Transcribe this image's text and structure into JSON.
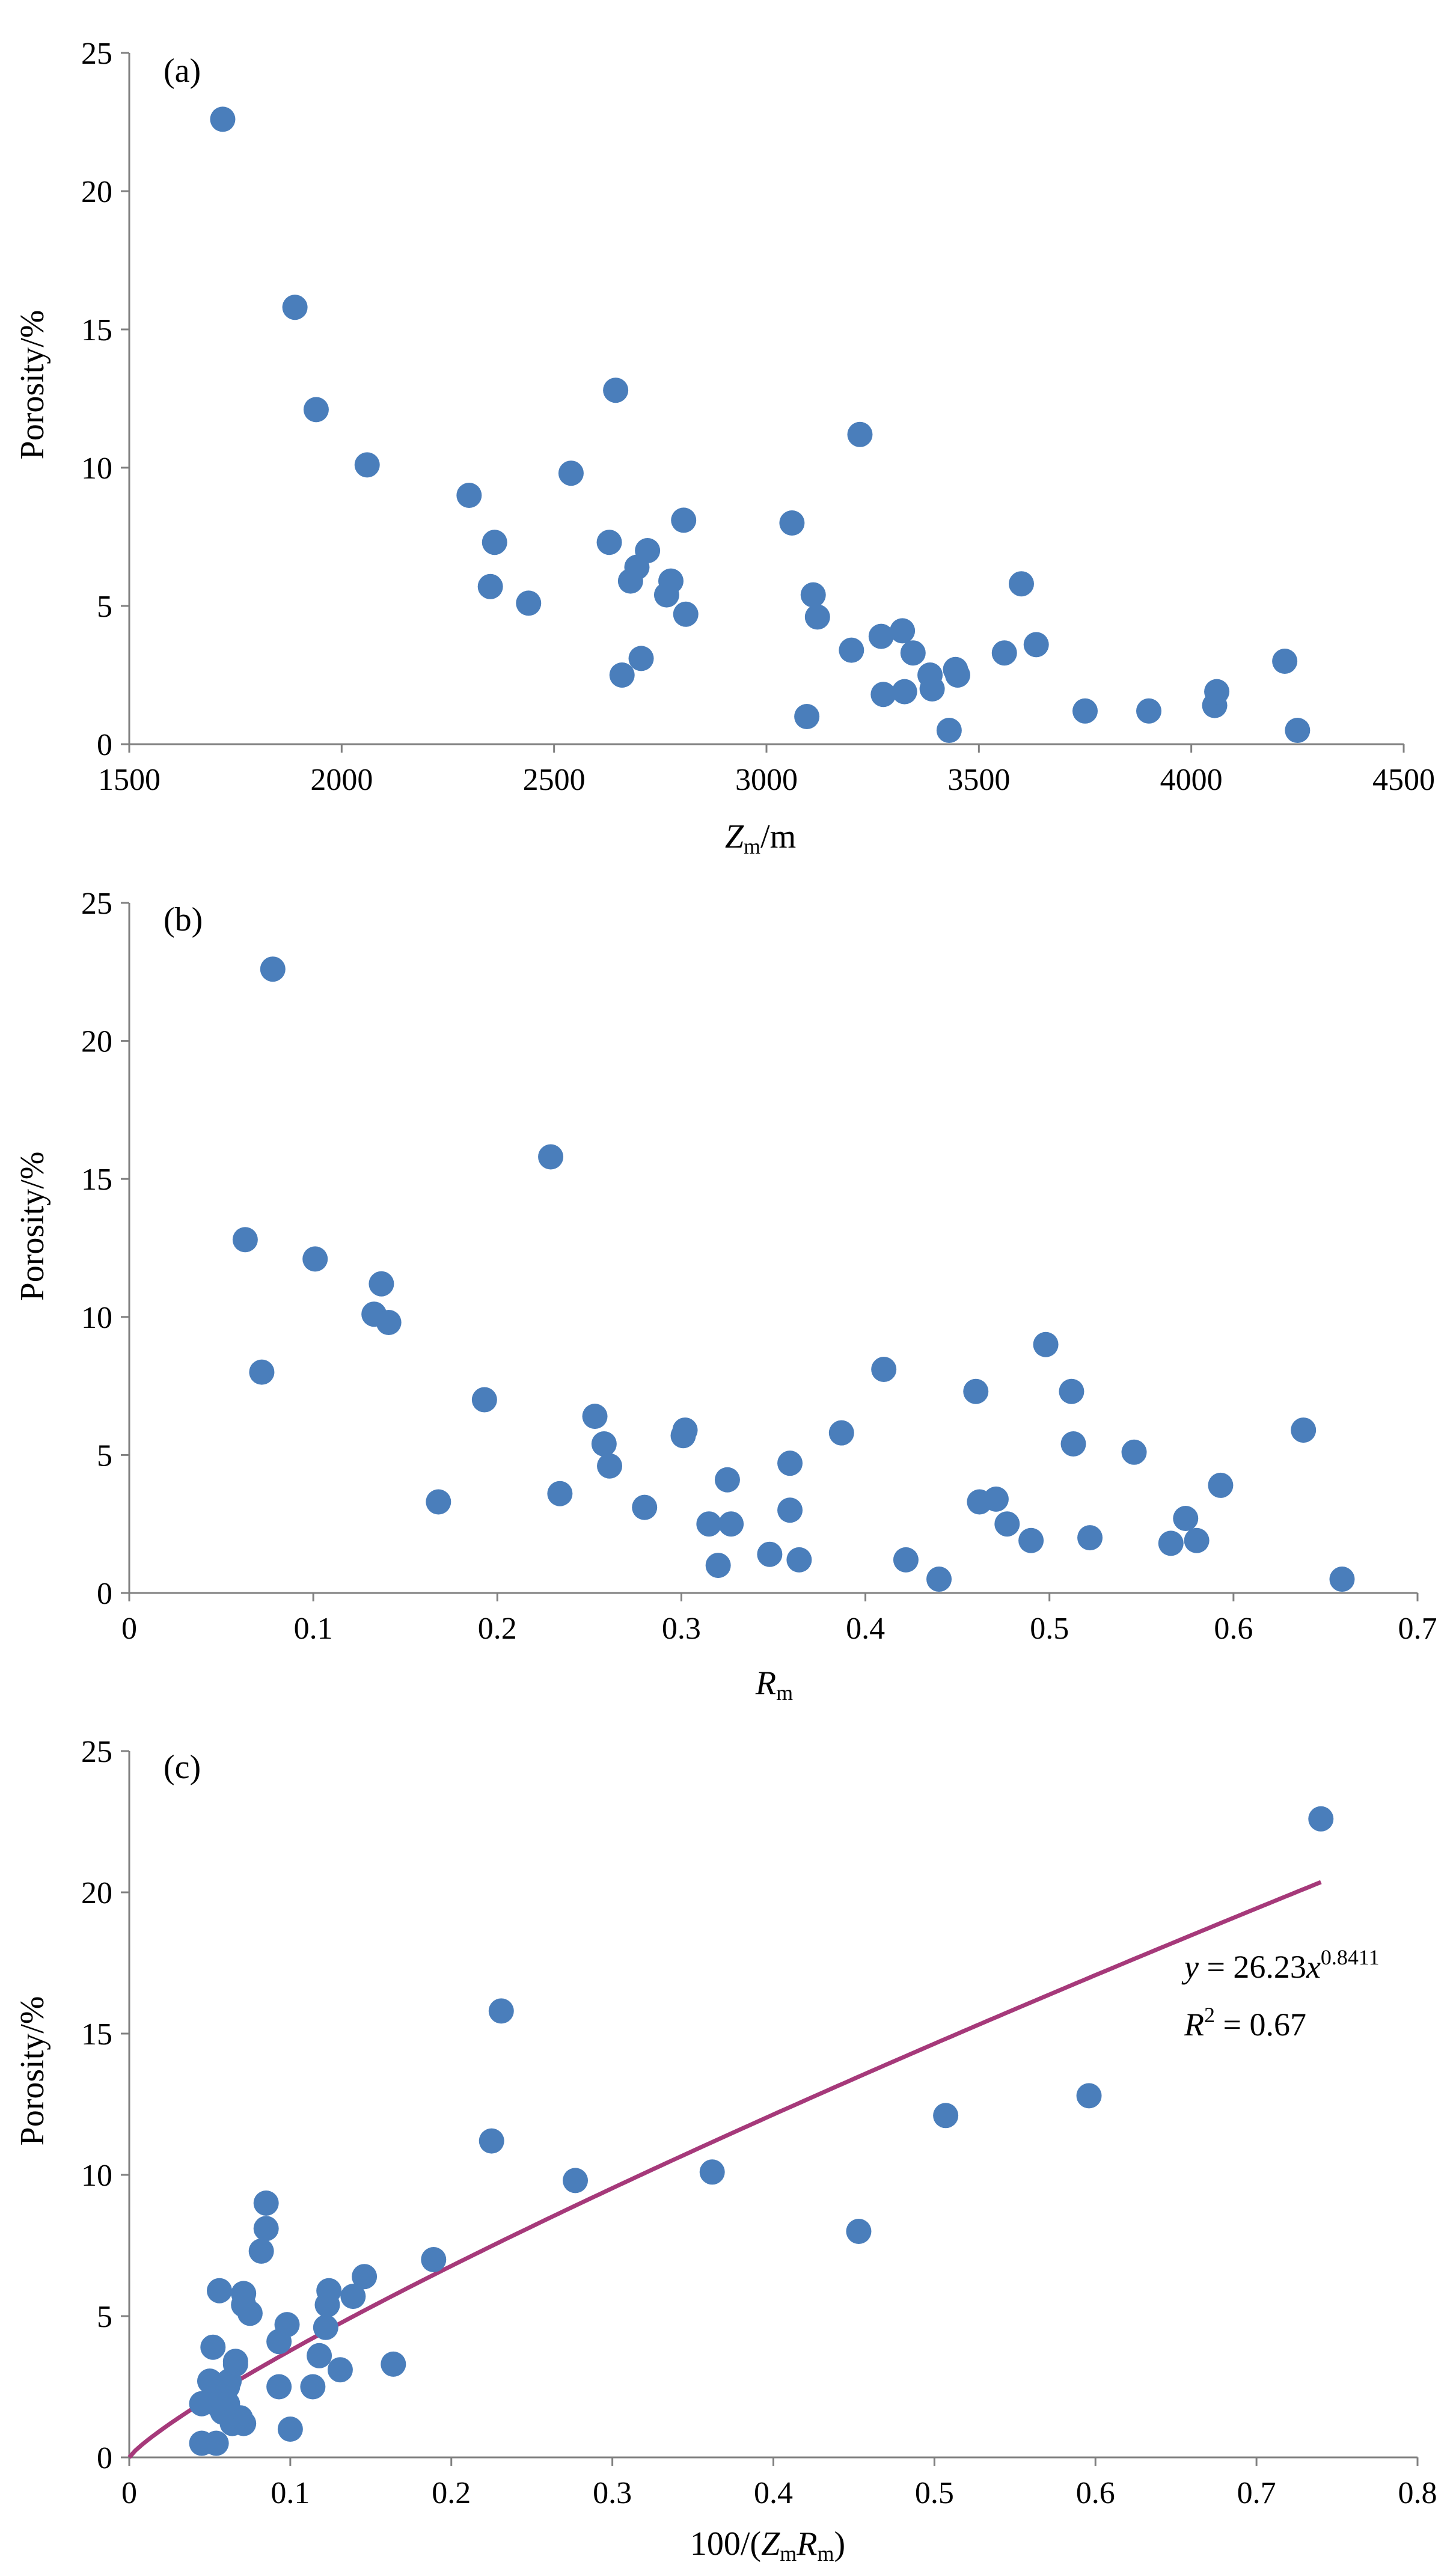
{
  "colors": {
    "marker": "#4a7ebb",
    "fit": "#a6397a",
    "axis": "#808080"
  },
  "chart_data": [
    {
      "type": "scatter",
      "panel_label": "(a)",
      "xlabel": {
        "main": "Z",
        "sub": "m",
        "suffix": "/m"
      },
      "ylabel": "Porosity/%",
      "xlim": [
        1500,
        4500
      ],
      "ylim": [
        0,
        25
      ],
      "xticks": [
        "1500",
        "2000",
        "2500",
        "3000",
        "3500",
        "4000",
        "4500"
      ],
      "yticks": [
        "0",
        "5",
        "10",
        "15",
        "20",
        "25"
      ],
      "points": [
        [
          1720,
          22.6
        ],
        [
          1890,
          15.8
        ],
        [
          1940,
          12.1
        ],
        [
          2060,
          10.1
        ],
        [
          2300,
          9.0
        ],
        [
          2350,
          5.7
        ],
        [
          2360,
          7.3
        ],
        [
          2440,
          5.1
        ],
        [
          2540,
          9.8
        ],
        [
          2630,
          7.3
        ],
        [
          2645,
          12.8
        ],
        [
          2660,
          2.5
        ],
        [
          2680,
          5.9
        ],
        [
          2695,
          6.4
        ],
        [
          2705,
          3.1
        ],
        [
          2720,
          7.0
        ],
        [
          2765,
          5.4
        ],
        [
          2775,
          5.9
        ],
        [
          2805,
          8.1
        ],
        [
          2810,
          4.7
        ],
        [
          3060,
          8.0
        ],
        [
          3095,
          1.0
        ],
        [
          3110,
          5.4
        ],
        [
          3120,
          4.6
        ],
        [
          3200,
          3.4
        ],
        [
          3220,
          11.2
        ],
        [
          3270,
          3.9
        ],
        [
          3275,
          1.8
        ],
        [
          3320,
          4.1
        ],
        [
          3325,
          1.9
        ],
        [
          3345,
          3.3
        ],
        [
          3385,
          2.5
        ],
        [
          3390,
          2.0
        ],
        [
          3430,
          0.5
        ],
        [
          3445,
          2.7
        ],
        [
          3450,
          2.5
        ],
        [
          3560,
          3.3
        ],
        [
          3600,
          5.8
        ],
        [
          3635,
          3.6
        ],
        [
          3750,
          1.2
        ],
        [
          3900,
          1.2
        ],
        [
          4055,
          1.4
        ],
        [
          4060,
          1.9
        ],
        [
          4220,
          3.0
        ],
        [
          4250,
          0.5
        ]
      ]
    },
    {
      "type": "scatter",
      "panel_label": "(b)",
      "xlabel": {
        "main": "R",
        "sub": "m",
        "suffix": ""
      },
      "ylabel": "Porosity/%",
      "xlim": [
        0,
        0.7
      ],
      "ylim": [
        0,
        25
      ],
      "xticks": [
        "0",
        "0.1",
        "0.2",
        "0.3",
        "0.4",
        "0.5",
        "0.6",
        "0.7"
      ],
      "yticks": [
        "0",
        "5",
        "10",
        "15",
        "20",
        "25"
      ],
      "points": [
        [
          0.078,
          22.6
        ],
        [
          0.063,
          12.8
        ],
        [
          0.072,
          8.0
        ],
        [
          0.101,
          12.1
        ],
        [
          0.133,
          10.1
        ],
        [
          0.137,
          11.2
        ],
        [
          0.141,
          9.8
        ],
        [
          0.168,
          3.3
        ],
        [
          0.193,
          7.0
        ],
        [
          0.229,
          15.8
        ],
        [
          0.234,
          3.6
        ],
        [
          0.253,
          6.4
        ],
        [
          0.258,
          5.4
        ],
        [
          0.261,
          4.6
        ],
        [
          0.28,
          3.1
        ],
        [
          0.301,
          5.7
        ],
        [
          0.302,
          5.9
        ],
        [
          0.315,
          2.5
        ],
        [
          0.32,
          1.0
        ],
        [
          0.325,
          4.1
        ],
        [
          0.327,
          2.5
        ],
        [
          0.348,
          1.4
        ],
        [
          0.359,
          4.7
        ],
        [
          0.359,
          3.0
        ],
        [
          0.364,
          1.2
        ],
        [
          0.387,
          5.8
        ],
        [
          0.41,
          8.1
        ],
        [
          0.422,
          1.2
        ],
        [
          0.44,
          0.5
        ],
        [
          0.46,
          7.3
        ],
        [
          0.462,
          3.3
        ],
        [
          0.471,
          3.4
        ],
        [
          0.477,
          2.5
        ],
        [
          0.49,
          1.9
        ],
        [
          0.498,
          9.0
        ],
        [
          0.512,
          7.3
        ],
        [
          0.513,
          5.4
        ],
        [
          0.522,
          2.0
        ],
        [
          0.546,
          5.1
        ],
        [
          0.566,
          1.8
        ],
        [
          0.574,
          2.7
        ],
        [
          0.58,
          1.9
        ],
        [
          0.593,
          3.9
        ],
        [
          0.638,
          5.9
        ],
        [
          0.659,
          0.5
        ]
      ]
    },
    {
      "type": "scatter",
      "panel_label": "(c)",
      "xlabel": {
        "prefix": "100/(",
        "main": "Z",
        "sub": "m",
        "main2": "R",
        "sub2": "m",
        "suffix": ")"
      },
      "ylabel": "Porosity/%",
      "xlim": [
        0,
        0.8
      ],
      "ylim": [
        0,
        25
      ],
      "xticks": [
        "0",
        "0.1",
        "0.2",
        "0.3",
        "0.4",
        "0.5",
        "0.6",
        "0.7",
        "0.8"
      ],
      "yticks": [
        "0",
        "5",
        "10",
        "15",
        "20",
        "25"
      ],
      "fit": {
        "a": 26.23,
        "b": 0.8411,
        "x_range": [
          0,
          0.74
        ]
      },
      "equation": {
        "lhs": "y",
        "eq": " = 26.23",
        "var": "x",
        "exp": "0.8411"
      },
      "r2": {
        "lhs": "R",
        "exp": "2",
        "rhs": " = 0.67"
      },
      "points": [
        [
          0.74,
          22.6
        ],
        [
          0.231,
          15.8
        ],
        [
          0.596,
          12.8
        ],
        [
          0.507,
          12.1
        ],
        [
          0.225,
          11.2
        ],
        [
          0.362,
          10.1
        ],
        [
          0.277,
          9.8
        ],
        [
          0.085,
          9.0
        ],
        [
          0.085,
          8.1
        ],
        [
          0.453,
          8.0
        ],
        [
          0.082,
          7.3
        ],
        [
          0.189,
          7.0
        ],
        [
          0.146,
          6.4
        ],
        [
          0.124,
          5.9
        ],
        [
          0.056,
          5.9
        ],
        [
          0.071,
          5.8
        ],
        [
          0.139,
          5.7
        ],
        [
          0.071,
          5.4
        ],
        [
          0.123,
          5.4
        ],
        [
          0.075,
          5.1
        ],
        [
          0.098,
          4.7
        ],
        [
          0.122,
          4.6
        ],
        [
          0.093,
          4.1
        ],
        [
          0.052,
          3.9
        ],
        [
          0.118,
          3.6
        ],
        [
          0.066,
          3.4
        ],
        [
          0.164,
          3.3
        ],
        [
          0.066,
          3.3
        ],
        [
          0.131,
          3.1
        ],
        [
          0.05,
          2.7
        ],
        [
          0.062,
          2.7
        ],
        [
          0.093,
          2.5
        ],
        [
          0.114,
          2.5
        ],
        [
          0.061,
          2.5
        ],
        [
          0.05,
          2.0
        ],
        [
          0.061,
          1.9
        ],
        [
          0.056,
          1.8
        ],
        [
          0.045,
          1.9
        ],
        [
          0.069,
          1.4
        ],
        [
          0.064,
          1.2
        ],
        [
          0.071,
          1.2
        ],
        [
          0.1,
          1.0
        ],
        [
          0.045,
          0.5
        ],
        [
          0.054,
          0.5
        ],
        [
          0.058,
          1.6
        ]
      ]
    }
  ]
}
